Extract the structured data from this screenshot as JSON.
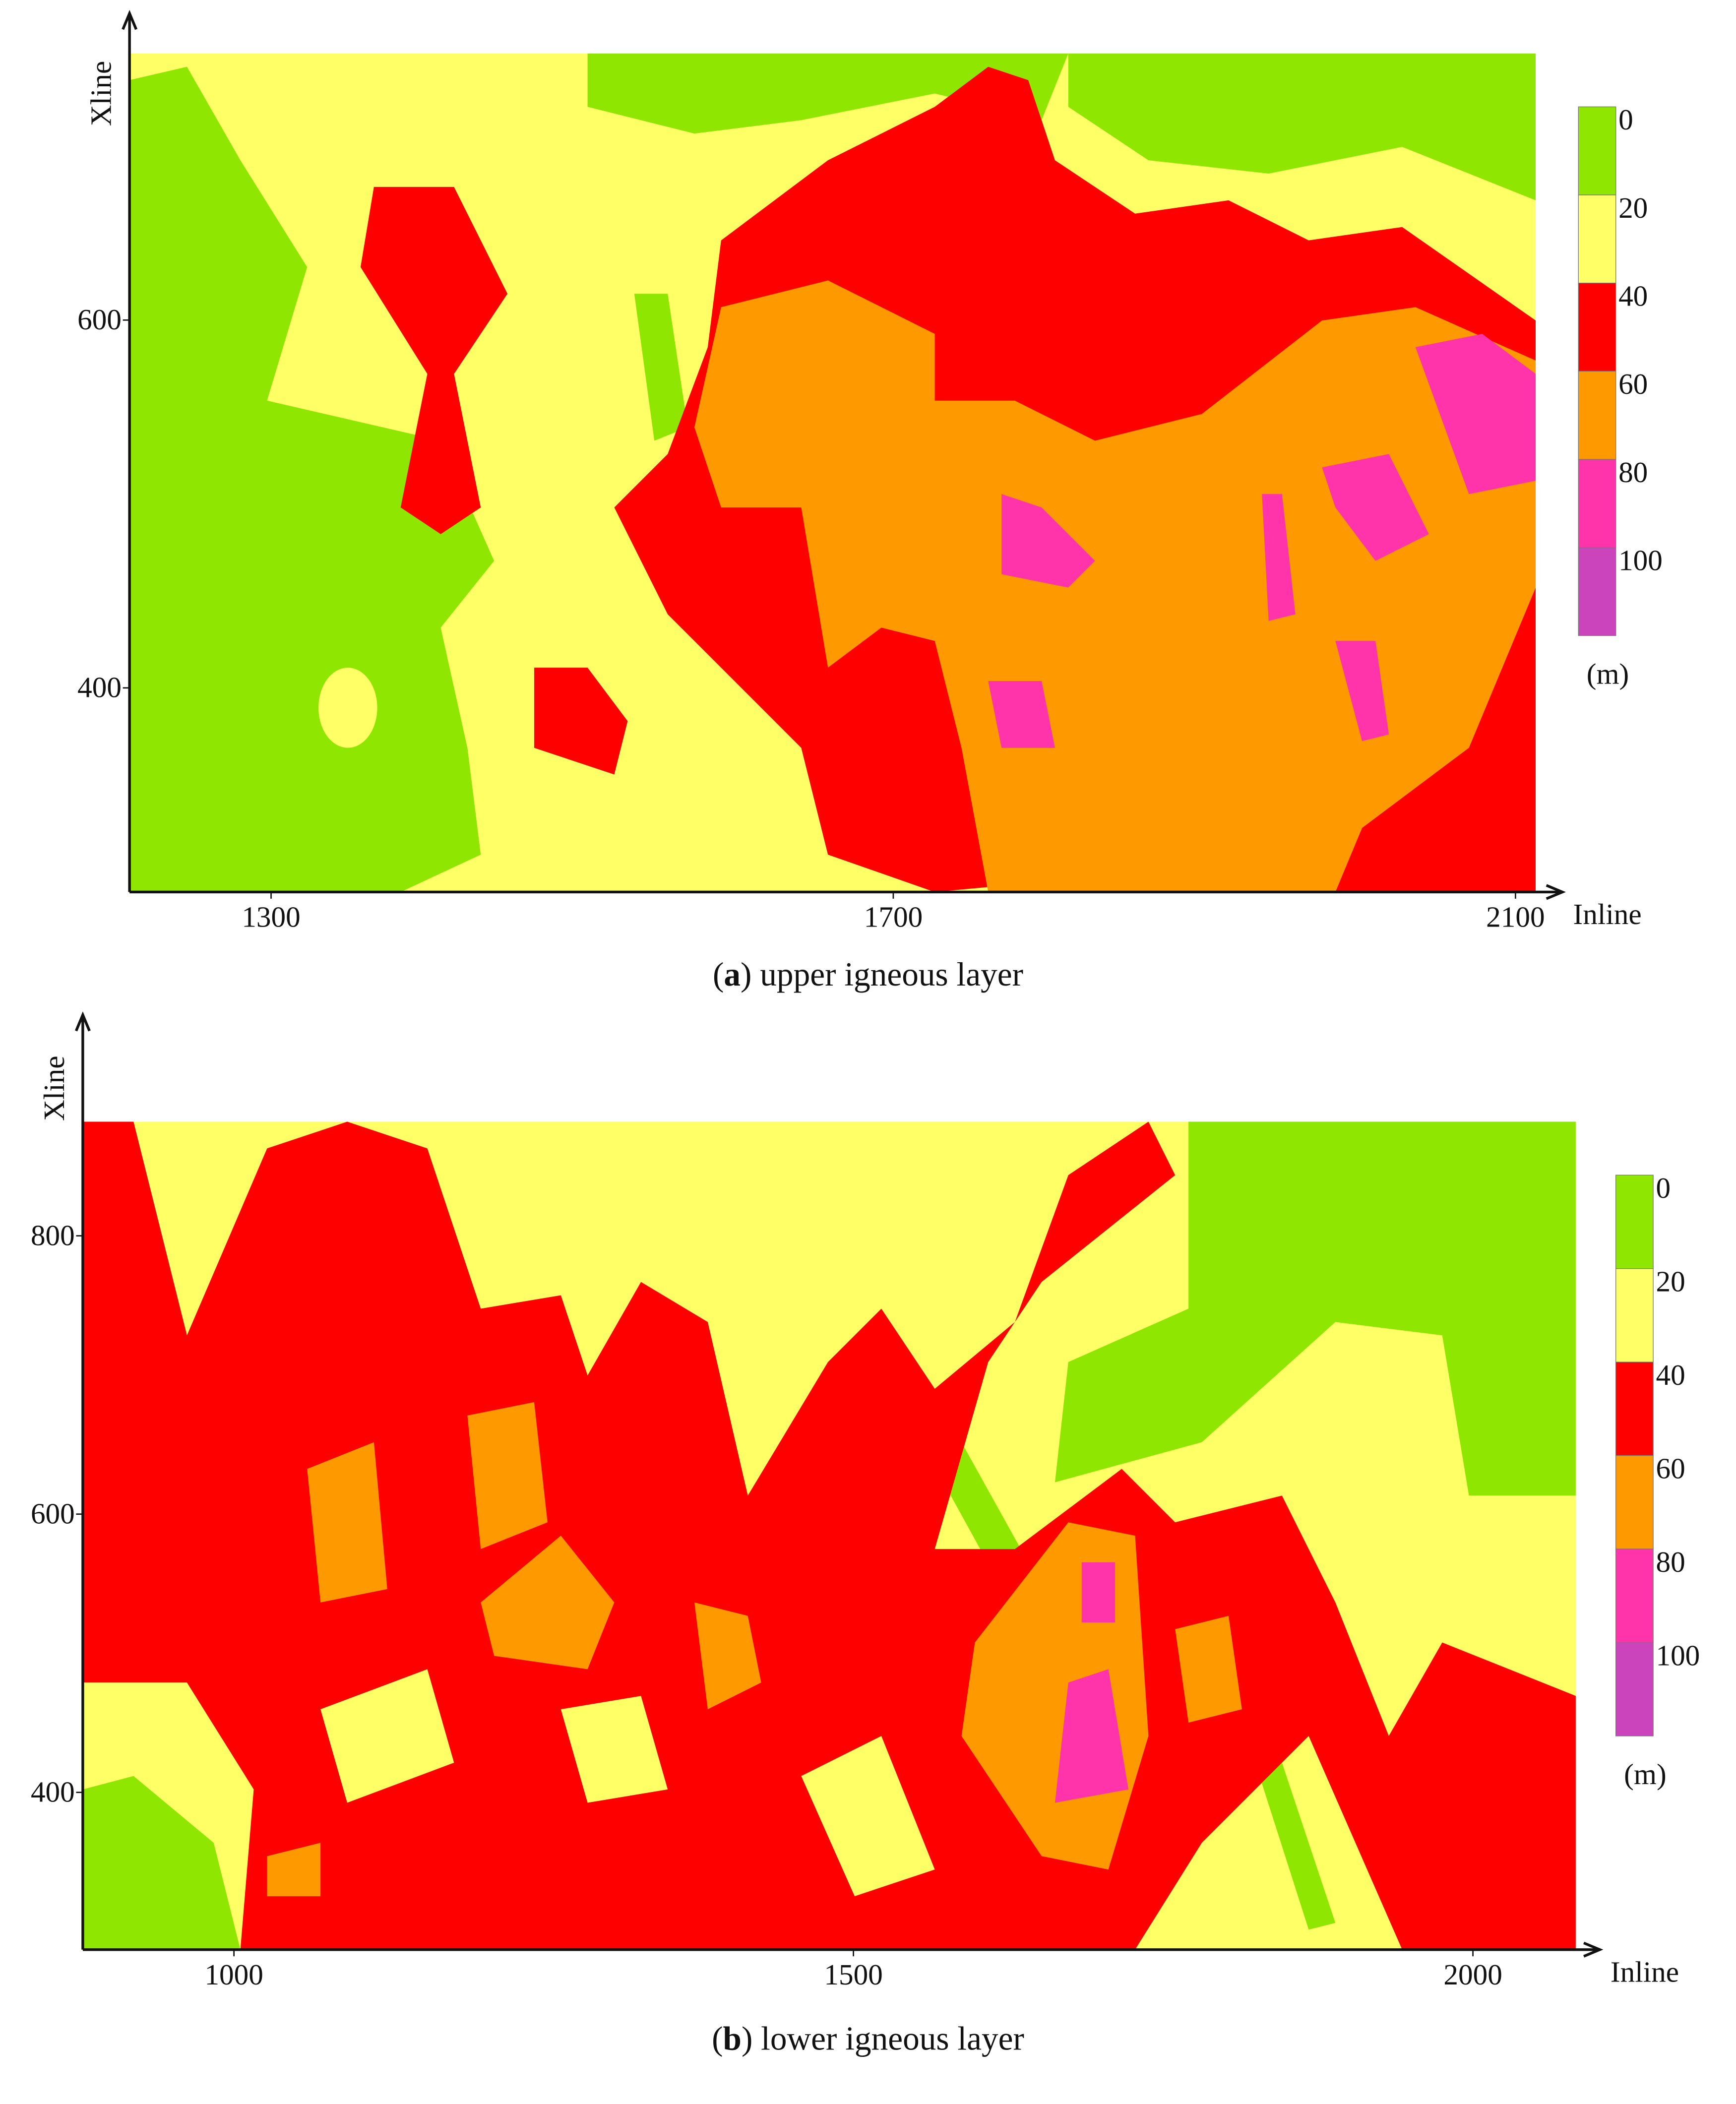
{
  "panels": [
    {
      "x_label": "Inline",
      "y_label": "Xline",
      "xlim": [
        1209,
        2113
      ],
      "ylim": [
        289,
        745
      ],
      "xticks": [
        1300,
        1700,
        2100
      ],
      "yticks": [
        400,
        600
      ],
      "legend": {
        "levels": [
          0,
          20,
          40,
          60,
          80,
          100
        ],
        "colors": [
          "#8fe600",
          "#ffff66",
          "#ff0000",
          "#ff9900",
          "#ff33aa",
          "#cc44bb"
        ],
        "unit": "(m)"
      },
      "caption": {
        "open": "(",
        "letter": "a",
        "text": ") upper igneous layer"
      }
    },
    {
      "x_label": "Inline",
      "y_label": "Xline",
      "xlim": [
        878,
        2083
      ],
      "ylim": [
        287,
        882
      ],
      "xticks": [
        1000,
        1500,
        2000
      ],
      "yticks": [
        400,
        600,
        800
      ],
      "legend": {
        "levels": [
          0,
          20,
          40,
          60,
          80,
          100
        ],
        "colors": [
          "#8fe600",
          "#ffff66",
          "#ff0000",
          "#ff9900",
          "#ff33aa",
          "#cc44bb"
        ],
        "unit": "(m)"
      },
      "caption": {
        "open": "(",
        "letter": "b",
        "text": ") lower igneous layer"
      }
    }
  ]
}
